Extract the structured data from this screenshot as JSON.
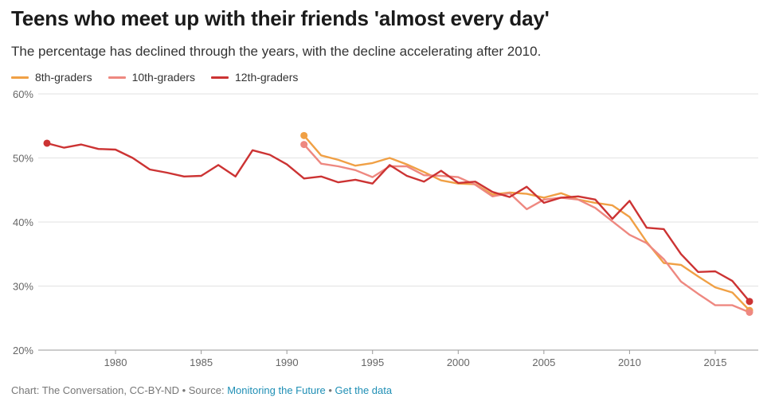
{
  "header": {
    "title": "Teens who meet up with their friends 'almost every day'",
    "subtitle": "The percentage has declined through the years, with the decline accelerating after 2010."
  },
  "legend": [
    {
      "name": "8th-graders",
      "color": "#f0a045"
    },
    {
      "name": "10th-graders",
      "color": "#ee8880"
    },
    {
      "name": "12th-graders",
      "color": "#cc3333"
    }
  ],
  "footer": {
    "credit": "Chart: The Conversation, CC-BY-ND",
    "separator1": " • Source: ",
    "source_link": "Monitoring the Future",
    "separator2": " • ",
    "data_link": "Get the data"
  },
  "chart_data": {
    "type": "line",
    "ylim": [
      20,
      60
    ],
    "xlim": [
      1976,
      2017
    ],
    "yticks": [
      20,
      30,
      40,
      50,
      60
    ],
    "ytick_labels": [
      "20%",
      "30%",
      "40%",
      "50%",
      "60%"
    ],
    "xticks": [
      1980,
      1985,
      1990,
      1995,
      2000,
      2005,
      2010,
      2015
    ],
    "xtick_labels": [
      "1980",
      "1985",
      "1990",
      "1995",
      "2000",
      "2005",
      "2010",
      "2015"
    ],
    "grid": true,
    "legend_position": "top-left",
    "series": [
      {
        "name": "8th-graders",
        "color": "#f0a045",
        "x": [
          1991,
          1992,
          1993,
          1994,
          1995,
          1996,
          1997,
          1998,
          1999,
          2000,
          2001,
          2002,
          2003,
          2004,
          2005,
          2006,
          2007,
          2008,
          2009,
          2010,
          2011,
          2012,
          2013,
          2014,
          2015,
          2016,
          2017
        ],
        "y": [
          53.5,
          50.4,
          49.7,
          48.8,
          49.2,
          50.0,
          49.0,
          47.8,
          46.5,
          46.0,
          45.9,
          44.3,
          44.6,
          44.4,
          43.8,
          44.5,
          43.5,
          43.0,
          42.6,
          40.8,
          36.9,
          33.6,
          33.3,
          31.5,
          29.8,
          29.0,
          26.2
        ]
      },
      {
        "name": "10th-graders",
        "color": "#ee8880",
        "x": [
          1991,
          1992,
          1993,
          1994,
          1995,
          1996,
          1997,
          1998,
          1999,
          2000,
          2001,
          2002,
          2003,
          2004,
          2005,
          2006,
          2007,
          2008,
          2009,
          2010,
          2011,
          2012,
          2013,
          2014,
          2015,
          2016,
          2017
        ],
        "y": [
          52.1,
          49.1,
          48.7,
          48.1,
          47.0,
          48.7,
          48.7,
          47.3,
          47.2,
          47.0,
          45.8,
          44.0,
          44.5,
          42.0,
          43.5,
          43.8,
          43.5,
          42.2,
          40.1,
          38.0,
          36.7,
          34.2,
          30.7,
          28.8,
          27.0,
          27.0,
          25.9
        ]
      },
      {
        "name": "12th-graders",
        "color": "#cc3333",
        "x": [
          1976,
          1977,
          1978,
          1979,
          1980,
          1981,
          1982,
          1983,
          1984,
          1985,
          1986,
          1987,
          1988,
          1989,
          1990,
          1991,
          1992,
          1993,
          1994,
          1995,
          1996,
          1997,
          1998,
          1999,
          2000,
          2001,
          2002,
          2003,
          2004,
          2005,
          2006,
          2007,
          2008,
          2009,
          2010,
          2011,
          2012,
          2013,
          2014,
          2015,
          2016,
          2017
        ],
        "y": [
          52.3,
          51.6,
          52.1,
          51.4,
          51.3,
          50.0,
          48.2,
          47.7,
          47.1,
          47.2,
          48.9,
          47.1,
          51.2,
          50.5,
          49.0,
          46.8,
          47.1,
          46.2,
          46.6,
          46.0,
          48.9,
          47.2,
          46.3,
          48.0,
          46.1,
          46.3,
          44.7,
          43.9,
          45.5,
          43.0,
          43.8,
          44.0,
          43.5,
          40.5,
          43.3,
          39.1,
          38.9,
          35.0,
          32.2,
          32.3,
          30.8,
          27.6
        ]
      }
    ]
  }
}
